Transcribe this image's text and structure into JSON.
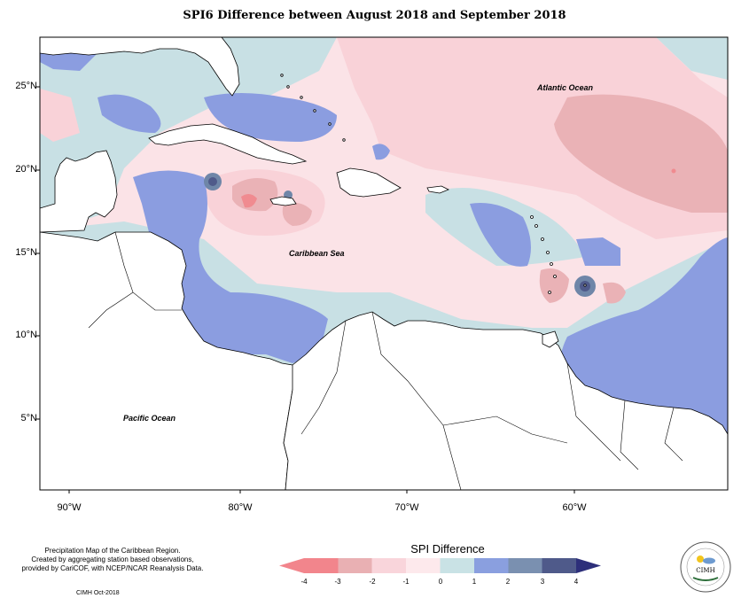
{
  "title": "SPI6 Difference between August 2018 and September 2018",
  "lat_labels": [
    "25°N",
    "20°N",
    "15°N",
    "10°N",
    "5°N"
  ],
  "lon_labels": [
    "90°W",
    "80°W",
    "70°W",
    "60°W"
  ],
  "oceans": {
    "atlantic": "Atlantic Ocean",
    "caribbean": "Caribbean Sea",
    "pacific": "Pacific Ocean"
  },
  "notes": [
    "Precipitation Map of the Caribbean Region.",
    "Created by aggregating station based observations,",
    "provided by CariCOF, with NCEP/NCAR Reanalysis Data."
  ],
  "credit": "CIMH Oct-2018",
  "legend": {
    "title": "SPI Difference",
    "ticks": [
      "-4",
      "-3",
      "-2",
      "-1",
      "0",
      "1",
      "2",
      "3",
      "4"
    ],
    "colors": [
      "#f2858c",
      "#e9b0b3",
      "#f9d5db",
      "#fde9ec",
      "#c9e2e5",
      "#8a9fdf",
      "#7a90b0",
      "#4f5a8a",
      "#2d2f7a"
    ]
  },
  "colors": {
    "land": "#ffffff",
    "pink_light": "#fbe3e7",
    "pink": "#f9d2d8",
    "pink_mid": "#eab2b6",
    "red": "#f08b90",
    "blue_light": "#c8e0e4",
    "blue": "#8b9de0",
    "slate": "#6f86a8",
    "navy": "#4f5a8a"
  },
  "logo_text": "CIMH"
}
